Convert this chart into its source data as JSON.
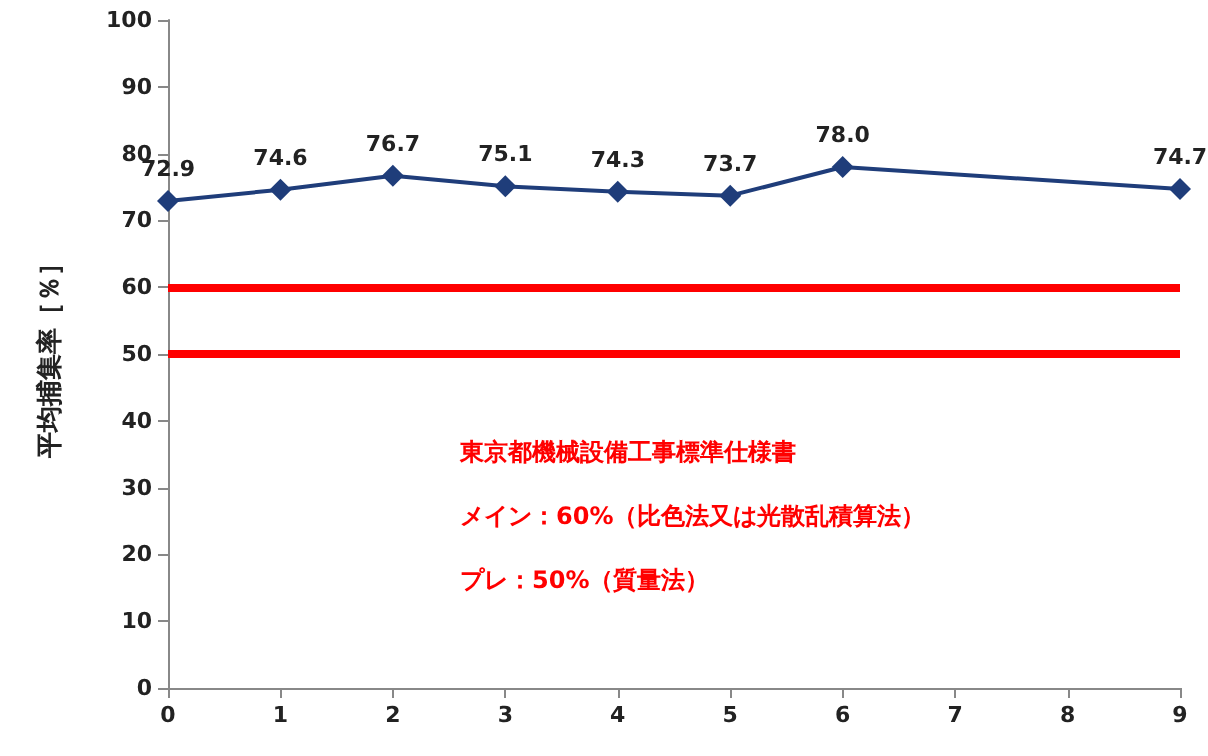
{
  "chart_data": {
    "type": "line",
    "ylabel": "平均捕集率［％］",
    "x": [
      0,
      1,
      2,
      3,
      4,
      5,
      6,
      9
    ],
    "series": [
      {
        "color": "#1f3d7a",
        "values": [
          72.9,
          74.6,
          76.7,
          75.1,
          74.3,
          73.7,
          78.0,
          74.7
        ],
        "value_labels": [
          "72.9",
          "74.6",
          "76.7",
          "75.1",
          "74.3",
          "73.7",
          "78.0",
          "74.7"
        ]
      }
    ],
    "xlim": [
      0,
      9
    ],
    "xticks": [
      0,
      1,
      2,
      3,
      4,
      5,
      6,
      7,
      8,
      9
    ],
    "ylim": [
      0,
      100
    ],
    "yticks": [
      0,
      10,
      20,
      30,
      40,
      50,
      60,
      70,
      80,
      90,
      100
    ],
    "marker": "diamond",
    "ref_lines": [
      {
        "axis": "y",
        "value": 60,
        "color": "#ff0000"
      },
      {
        "axis": "y",
        "value": 50,
        "color": "#ff0000"
      }
    ],
    "annotations": [
      "東京都機械設備工事標準仕様書",
      "メイン：60%（比色法又は光散乱積算法）",
      "プレ：50%（質量法）"
    ]
  }
}
